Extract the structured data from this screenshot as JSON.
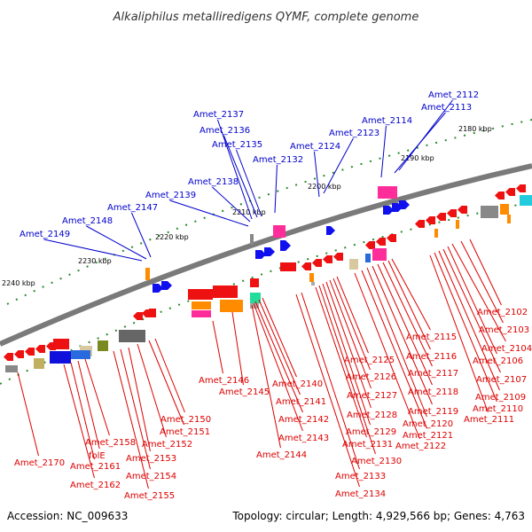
{
  "title": "Alkaliphilus metalliredigens QYMF, complete genome",
  "footer": {
    "accession": "Accession: NC_009633",
    "summary": "Topology: circular; Length: 4,929,566 bp; Genes: 4,763"
  },
  "colors": {
    "forward_label": "#0000cc",
    "reverse_label": "#dd0000",
    "backbone": "#808080",
    "forward_gene": "#1010ee",
    "reverse_gene": "#ee1111",
    "tick": "#2a8a2a"
  },
  "scale_labels": [
    "2180 kbp",
    "2190 kbp",
    "2200 kbp",
    "2210 kbp",
    "2220 kbp",
    "2230 kbp",
    "2240 kbp"
  ],
  "forward_genes": [
    "Amet_2112",
    "Amet_2113",
    "Amet_2114",
    "Amet_2123",
    "Amet_2124",
    "Amet_2132",
    "Amet_2135",
    "Amet_2136",
    "Amet_2137",
    "Amet_2138",
    "Amet_2139",
    "Amet_2147",
    "Amet_2148",
    "Amet_2149"
  ],
  "reverse_genes": [
    "Amet_2102",
    "Amet_2103",
    "Amet_2104",
    "Amet_2106",
    "Amet_2107",
    "Amet_2109",
    "Amet_2110",
    "Amet_2111",
    "Amet_2115",
    "Amet_2116",
    "Amet_2117",
    "Amet_2118",
    "Amet_2119",
    "Amet_2120",
    "Amet_2121",
    "Amet_2122",
    "Amet_2125",
    "Amet_2126",
    "Amet_2127",
    "Amet_2128",
    "Amet_2129",
    "Amet_2130",
    "Amet_2131",
    "Amet_2133",
    "Amet_2134",
    "Amet_2140",
    "Amet_2141",
    "Amet_2142",
    "Amet_2143",
    "Amet_2144",
    "Amet_2145",
    "Amet_2146",
    "Amet_2150",
    "Amet_2151",
    "Amet_2152",
    "Amet_2153",
    "Amet_2154",
    "Amet_2155",
    "Amet_2158",
    "folE",
    "Amet_2161",
    "Amet_2162",
    "Amet_2170"
  ]
}
